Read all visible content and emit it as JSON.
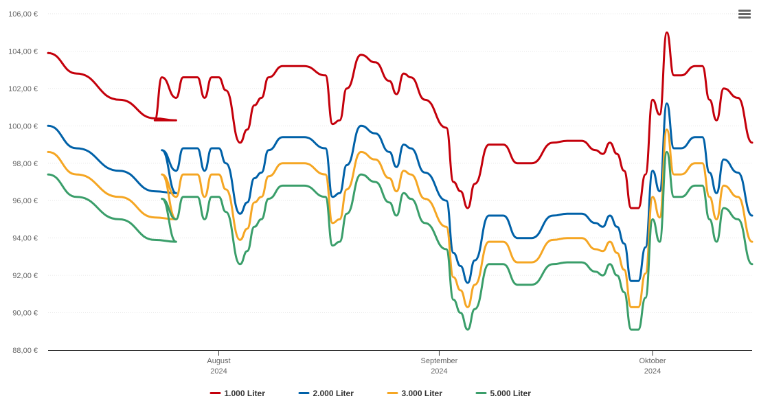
{
  "chart_data": {
    "type": "line",
    "title": "",
    "xlabel": "",
    "ylabel": "",
    "ylim": [
      88,
      106
    ],
    "yticks": [
      "88,00 €",
      "90,00 €",
      "92,00 €",
      "94,00 €",
      "96,00 €",
      "98,00 €",
      "100,00 €",
      "102,00 €",
      "104,00 €",
      "106,00 €"
    ],
    "xticks": [
      {
        "x": "2024-08-01",
        "month": "August",
        "year": "2024"
      },
      {
        "x": "2024-09-01",
        "month": "September",
        "year": "2024"
      },
      {
        "x": "2024-10-01",
        "month": "Oktober",
        "year": "2024"
      }
    ],
    "xlim": [
      "2024-07-08",
      "2024-10-15"
    ],
    "grid": true,
    "legend_position": "bottom-center",
    "series": [
      {
        "name": "1.000 Liter",
        "color": "#c4000b",
        "x": [
          "2024-07-08",
          "2024-07-12",
          "2024-07-18",
          "2024-07-23",
          "2024-07-26",
          "2024-07-23",
          "2024-07-23",
          "2024-07-23",
          "2024-07-23",
          "2024-07-24",
          "2024-07-26",
          "2024-07-27",
          "2024-07-29",
          "2024-07-30",
          "2024-07-31",
          "2024-08-01",
          "2024-08-02",
          "2024-08-04",
          "2024-08-05",
          "2024-08-06",
          "2024-08-07",
          "2024-08-08",
          "2024-08-10",
          "2024-08-13",
          "2024-08-16",
          "2024-08-17",
          "2024-08-18",
          "2024-08-19",
          "2024-08-21",
          "2024-08-23",
          "2024-08-25",
          "2024-08-26",
          "2024-08-27",
          "2024-08-28",
          "2024-08-30",
          "2024-09-02",
          "2024-09-03",
          "2024-09-04",
          "2024-09-05",
          "2024-09-06",
          "2024-09-08",
          "2024-09-10",
          "2024-09-12",
          "2024-09-14",
          "2024-09-17",
          "2024-09-19",
          "2024-09-21",
          "2024-09-23",
          "2024-09-24",
          "2024-09-25",
          "2024-09-26",
          "2024-09-27",
          "2024-09-28",
          "2024-09-29",
          "2024-09-30",
          "2024-10-01",
          "2024-10-02",
          "2024-10-03",
          "2024-10-04",
          "2024-10-05",
          "2024-10-07",
          "2024-10-08",
          "2024-10-09",
          "2024-10-10",
          "2024-10-11",
          "2024-10-13",
          "2024-10-15"
        ],
        "values": [
          103.9,
          102.8,
          101.4,
          100.4,
          100.3,
          100.3,
          100.3,
          100.3,
          100.3,
          102.6,
          101.5,
          102.6,
          102.6,
          101.5,
          102.6,
          102.6,
          101.9,
          99.1,
          99.8,
          101.1,
          101.5,
          102.6,
          103.2,
          103.2,
          102.7,
          100.1,
          100.3,
          102.0,
          103.8,
          103.4,
          102.4,
          101.7,
          102.8,
          102.6,
          101.4,
          99.9,
          97.0,
          96.5,
          95.6,
          96.9,
          99.0,
          99.0,
          98.0,
          98.0,
          99.1,
          99.2,
          99.2,
          98.7,
          98.5,
          99.1,
          98.5,
          97.6,
          95.6,
          95.6,
          97.4,
          101.4,
          100.6,
          105.0,
          102.7,
          102.7,
          103.2,
          103.2,
          101.4,
          100.3,
          102.0,
          101.5,
          99.1
        ]
      },
      {
        "name": "2.000 Liter",
        "color": "#0061a8",
        "x": [
          "2024-07-08",
          "2024-07-12",
          "2024-07-18",
          "2024-07-23",
          "2024-07-26",
          "2024-07-24",
          "2024-07-26",
          "2024-07-27",
          "2024-07-29",
          "2024-07-30",
          "2024-07-31",
          "2024-08-01",
          "2024-08-02",
          "2024-08-04",
          "2024-08-05",
          "2024-08-06",
          "2024-08-07",
          "2024-08-08",
          "2024-08-10",
          "2024-08-13",
          "2024-08-16",
          "2024-08-17",
          "2024-08-18",
          "2024-08-19",
          "2024-08-21",
          "2024-08-23",
          "2024-08-25",
          "2024-08-26",
          "2024-08-27",
          "2024-08-28",
          "2024-08-30",
          "2024-09-02",
          "2024-09-03",
          "2024-09-04",
          "2024-09-05",
          "2024-09-06",
          "2024-09-08",
          "2024-09-10",
          "2024-09-12",
          "2024-09-14",
          "2024-09-17",
          "2024-09-19",
          "2024-09-21",
          "2024-09-23",
          "2024-09-24",
          "2024-09-25",
          "2024-09-26",
          "2024-09-27",
          "2024-09-28",
          "2024-09-29",
          "2024-09-30",
          "2024-10-01",
          "2024-10-02",
          "2024-10-03",
          "2024-10-04",
          "2024-10-05",
          "2024-10-07",
          "2024-10-08",
          "2024-10-09",
          "2024-10-10",
          "2024-10-11",
          "2024-10-13",
          "2024-10-15"
        ],
        "values": [
          100.0,
          98.8,
          97.6,
          96.5,
          96.4,
          98.7,
          97.6,
          98.8,
          98.8,
          97.6,
          98.8,
          98.8,
          98.0,
          95.3,
          95.9,
          97.2,
          97.5,
          98.7,
          99.4,
          99.4,
          98.8,
          96.2,
          96.4,
          97.9,
          100.0,
          99.6,
          98.6,
          97.8,
          99.0,
          98.8,
          97.5,
          96.0,
          93.2,
          92.5,
          91.6,
          92.8,
          95.2,
          95.2,
          94.0,
          94.0,
          95.2,
          95.3,
          95.3,
          94.8,
          94.6,
          95.2,
          94.6,
          93.7,
          91.7,
          91.7,
          93.5,
          97.6,
          96.5,
          101.2,
          98.8,
          98.8,
          99.4,
          99.4,
          97.5,
          96.4,
          98.2,
          97.5,
          95.2
        ]
      },
      {
        "name": "3.000 Liter",
        "color": "#f5a623",
        "x": [
          "2024-07-08",
          "2024-07-12",
          "2024-07-18",
          "2024-07-23",
          "2024-07-26",
          "2024-07-24",
          "2024-07-26",
          "2024-07-27",
          "2024-07-29",
          "2024-07-30",
          "2024-07-31",
          "2024-08-01",
          "2024-08-02",
          "2024-08-04",
          "2024-08-05",
          "2024-08-06",
          "2024-08-07",
          "2024-08-08",
          "2024-08-10",
          "2024-08-13",
          "2024-08-16",
          "2024-08-17",
          "2024-08-18",
          "2024-08-19",
          "2024-08-21",
          "2024-08-23",
          "2024-08-25",
          "2024-08-26",
          "2024-08-27",
          "2024-08-28",
          "2024-08-30",
          "2024-09-02",
          "2024-09-03",
          "2024-09-04",
          "2024-09-05",
          "2024-09-06",
          "2024-09-08",
          "2024-09-10",
          "2024-09-12",
          "2024-09-14",
          "2024-09-17",
          "2024-09-19",
          "2024-09-21",
          "2024-09-23",
          "2024-09-24",
          "2024-09-25",
          "2024-09-26",
          "2024-09-27",
          "2024-09-28",
          "2024-09-29",
          "2024-09-30",
          "2024-10-01",
          "2024-10-02",
          "2024-10-03",
          "2024-10-04",
          "2024-10-05",
          "2024-10-07",
          "2024-10-08",
          "2024-10-09",
          "2024-10-10",
          "2024-10-11",
          "2024-10-13",
          "2024-10-15"
        ],
        "values": [
          98.6,
          97.4,
          96.2,
          95.1,
          95.0,
          97.4,
          96.2,
          97.4,
          97.4,
          96.2,
          97.4,
          97.4,
          96.6,
          93.9,
          94.5,
          95.9,
          96.2,
          97.3,
          98.0,
          98.0,
          97.4,
          94.8,
          95.0,
          96.6,
          98.6,
          98.2,
          97.2,
          96.5,
          97.6,
          97.4,
          96.1,
          94.6,
          91.9,
          91.2,
          90.3,
          91.5,
          93.8,
          93.8,
          92.7,
          92.7,
          93.9,
          94.0,
          94.0,
          93.4,
          93.3,
          93.8,
          93.2,
          92.3,
          90.3,
          90.3,
          92.1,
          96.2,
          95.1,
          99.8,
          97.4,
          97.4,
          98.0,
          98.0,
          96.2,
          95.0,
          96.8,
          96.2,
          93.8
        ]
      },
      {
        "name": "5.000 Liter",
        "color": "#3a9e6a",
        "x": [
          "2024-07-08",
          "2024-07-12",
          "2024-07-18",
          "2024-07-23",
          "2024-07-26",
          "2024-07-24",
          "2024-07-26",
          "2024-07-27",
          "2024-07-29",
          "2024-07-30",
          "2024-07-31",
          "2024-08-01",
          "2024-08-02",
          "2024-08-04",
          "2024-08-05",
          "2024-08-06",
          "2024-08-07",
          "2024-08-08",
          "2024-08-10",
          "2024-08-13",
          "2024-08-16",
          "2024-08-17",
          "2024-08-18",
          "2024-08-19",
          "2024-08-21",
          "2024-08-23",
          "2024-08-25",
          "2024-08-26",
          "2024-08-27",
          "2024-08-28",
          "2024-08-30",
          "2024-09-02",
          "2024-09-03",
          "2024-09-04",
          "2024-09-05",
          "2024-09-06",
          "2024-09-08",
          "2024-09-10",
          "2024-09-12",
          "2024-09-14",
          "2024-09-17",
          "2024-09-19",
          "2024-09-21",
          "2024-09-23",
          "2024-09-24",
          "2024-09-25",
          "2024-09-26",
          "2024-09-27",
          "2024-09-28",
          "2024-09-29",
          "2024-09-30",
          "2024-10-01",
          "2024-10-02",
          "2024-10-03",
          "2024-10-04",
          "2024-10-05",
          "2024-10-07",
          "2024-10-08",
          "2024-10-09",
          "2024-10-10",
          "2024-10-11",
          "2024-10-13",
          "2024-10-15"
        ],
        "values": [
          97.4,
          96.2,
          95.0,
          93.9,
          93.8,
          96.1,
          95.0,
          96.2,
          96.2,
          95.0,
          96.2,
          96.2,
          95.4,
          92.6,
          93.3,
          94.6,
          95.0,
          96.1,
          96.8,
          96.8,
          96.2,
          93.6,
          93.8,
          95.3,
          97.4,
          97.0,
          95.9,
          95.2,
          96.4,
          96.1,
          94.8,
          93.4,
          90.7,
          90.0,
          89.1,
          90.2,
          92.6,
          92.6,
          91.5,
          91.5,
          92.6,
          92.7,
          92.7,
          92.2,
          92.0,
          92.6,
          92.0,
          91.1,
          89.1,
          89.1,
          90.8,
          95.0,
          93.8,
          98.6,
          96.2,
          96.2,
          96.8,
          96.8,
          95.0,
          93.8,
          95.6,
          95.0,
          92.6
        ]
      }
    ]
  }
}
